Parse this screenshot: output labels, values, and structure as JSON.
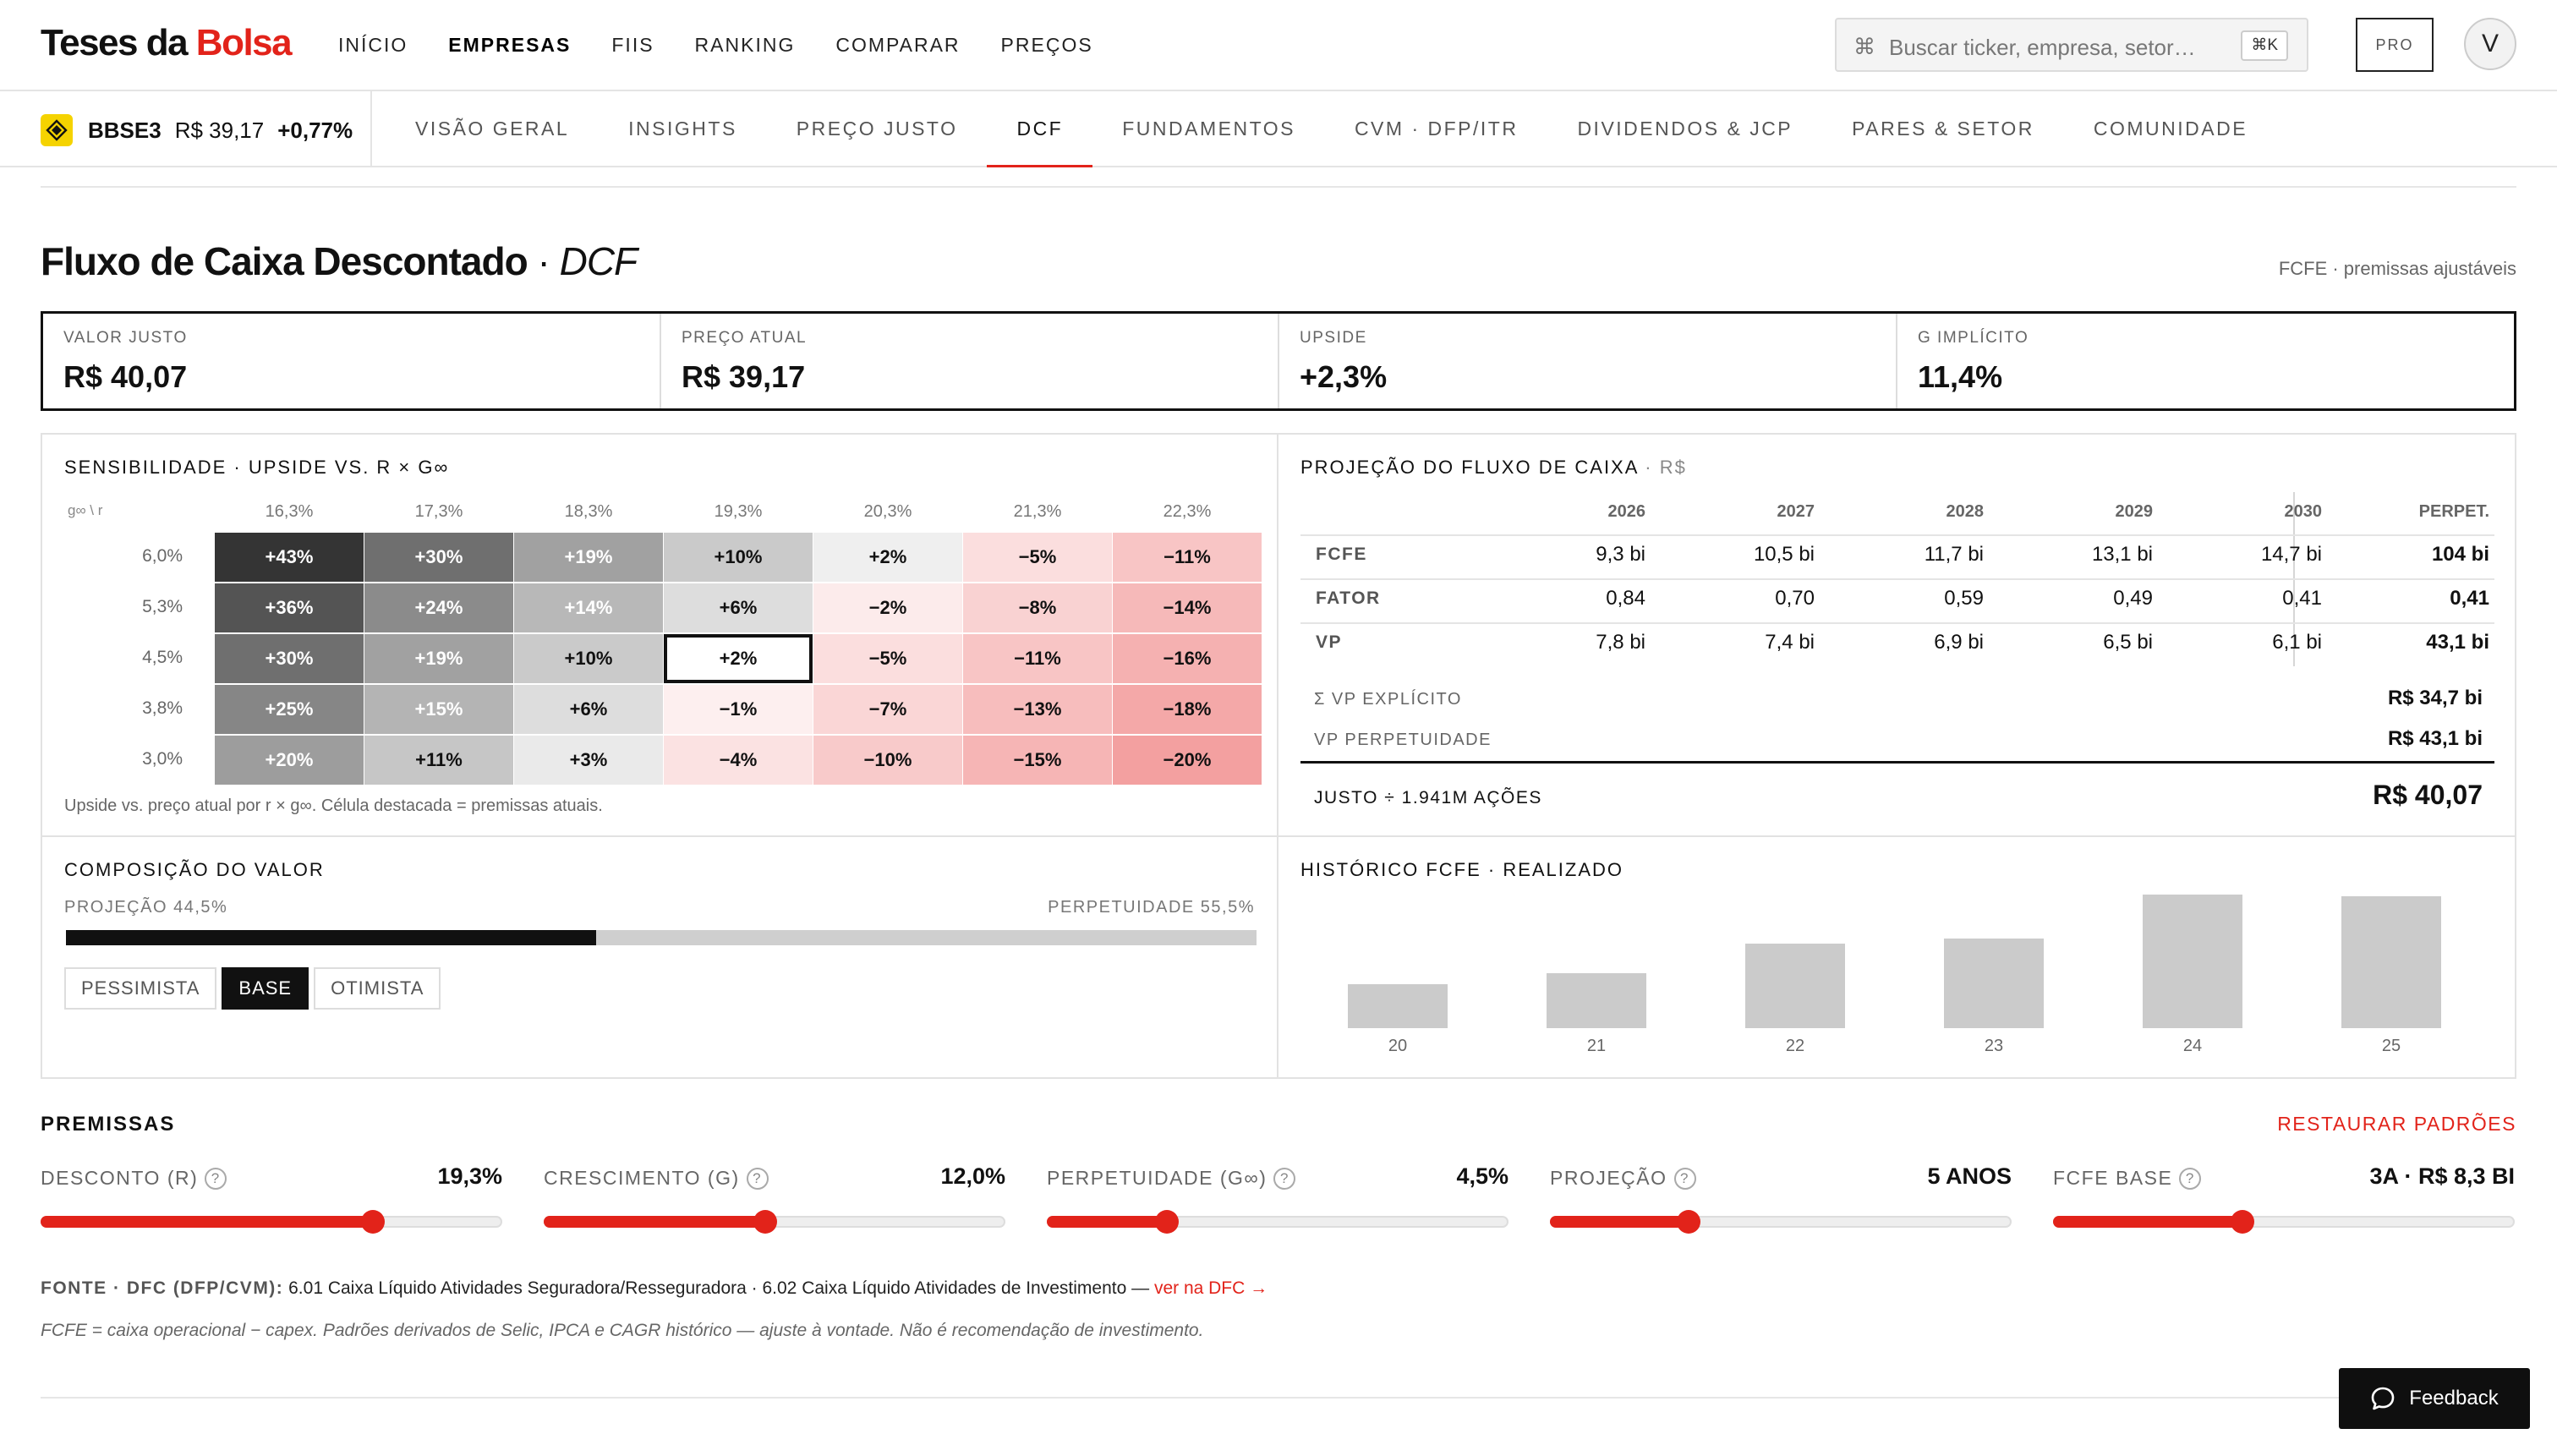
{
  "brand": {
    "part1": "Teses da ",
    "part2": "Bolsa",
    "accent": "#e2231a"
  },
  "nav": [
    "INÍCIO",
    "EMPRESAS",
    "FIIS",
    "RANKING",
    "COMPARAR",
    "PREÇOS"
  ],
  "nav_active": "EMPRESAS",
  "search": {
    "placeholder": "Buscar ticker, empresa, setor…",
    "shortcut": "⌘K",
    "icon": "command-icon"
  },
  "pro_label": "PRO",
  "avatar_initial": "V",
  "ticker": {
    "symbol": "BBSE3",
    "price": "R$ 39,17",
    "change": "+0,77%",
    "icon": "bbse-logo-icon",
    "icon_color": "#f5d300"
  },
  "tabs": [
    "VISÃO GERAL",
    "INSIGHTS",
    "PREÇO JUSTO",
    "DCF",
    "FUNDAMENTOS",
    "CVM · DFP/ITR",
    "DIVIDENDOS & JCP",
    "PARES & SETOR",
    "COMUNIDADE"
  ],
  "tab_active": "DCF",
  "page": {
    "title": "Fluxo de Caixa Descontado",
    "title_sep": " · ",
    "title_italic": "DCF",
    "subtitle": "FCFE · premissas ajustáveis"
  },
  "kpis": [
    {
      "label": "VALOR JUSTO",
      "value": "R$ 40,07"
    },
    {
      "label": "PREÇO ATUAL",
      "value": "R$ 39,17"
    },
    {
      "label": "UPSIDE",
      "value": "+2,3%"
    },
    {
      "label": "G IMPLÍCITO",
      "value": "11,4%"
    }
  ],
  "sensitivity": {
    "title": "SENSIBILIDADE · UPSIDE VS. R × G∞",
    "corner": "g∞ \\ r",
    "cols": [
      "16,3%",
      "17,3%",
      "18,3%",
      "19,3%",
      "20,3%",
      "21,3%",
      "22,3%"
    ],
    "rows": [
      "6,0%",
      "5,3%",
      "4,5%",
      "3,8%",
      "3,0%"
    ],
    "cells": [
      [
        "+43%",
        "+30%",
        "+19%",
        "+10%",
        "+2%",
        "−5%",
        "−11%"
      ],
      [
        "+36%",
        "+24%",
        "+14%",
        "+6%",
        "−2%",
        "−8%",
        "−14%"
      ],
      [
        "+30%",
        "+19%",
        "+10%",
        "+2%",
        "−5%",
        "−11%",
        "−16%"
      ],
      [
        "+25%",
        "+15%",
        "+6%",
        "−1%",
        "−7%",
        "−13%",
        "−18%"
      ],
      [
        "+20%",
        "+11%",
        "+3%",
        "−4%",
        "−10%",
        "−15%",
        "−20%"
      ]
    ],
    "highlight": {
      "row": 2,
      "col": 3
    },
    "note": "Upside vs. preço atual por r × g∞. Célula destacada = premissas atuais."
  },
  "projection": {
    "title": "PROJEÇÃO DO FLUXO DE CAIXA",
    "title_unit": " · R$",
    "years": [
      "2026",
      "2027",
      "2028",
      "2029",
      "2030"
    ],
    "perp_label": "PERPET.",
    "rows": [
      {
        "label": "FCFE",
        "values": [
          "9,3 bi",
          "10,5 bi",
          "11,7 bi",
          "13,1 bi",
          "14,7 bi"
        ],
        "perp": "104 bi"
      },
      {
        "label": "FATOR",
        "values": [
          "0,84",
          "0,70",
          "0,59",
          "0,49",
          "0,41"
        ],
        "perp": "0,41"
      },
      {
        "label": "VP",
        "values": [
          "7,8 bi",
          "7,4 bi",
          "6,9 bi",
          "6,5 bi",
          "6,1 bi"
        ],
        "perp": "43,1 bi"
      }
    ],
    "sum_explicit_label": "Σ VP EXPLÍCITO",
    "sum_explicit_value": "R$ 34,7 bi",
    "vp_perp_label": "VP PERPETUIDADE",
    "vp_perp_value": "R$ 43,1 bi",
    "fair_label": "JUSTO ÷ 1.941M AÇÕES",
    "fair_value": "R$ 40,07"
  },
  "composition": {
    "title": "COMPOSIÇÃO DO VALOR",
    "left_label": "PROJEÇÃO 44,5%",
    "right_label": "PERPETUIDADE 55,5%",
    "projection_share": 0.445,
    "scenarios": [
      "PESSIMISTA",
      "BASE",
      "OTIMISTA"
    ],
    "scenario_active": "BASE"
  },
  "history": {
    "title": "HISTÓRICO FCFE · REALIZADO",
    "labels": [
      "20",
      "21",
      "22",
      "23",
      "24",
      "25"
    ],
    "relative_values": [
      0.33,
      0.41,
      0.63,
      0.67,
      1.0,
      0.99
    ]
  },
  "premissas": {
    "title": "PREMISSAS",
    "reset": "RESTAURAR PADRÕES",
    "sliders": [
      {
        "label": "DESCONTO (R)",
        "value": "19,3%",
        "level": 0.72
      },
      {
        "label": "CRESCIMENTO (G)",
        "value": "12,0%",
        "level": 0.48
      },
      {
        "label": "PERPETUIDADE (G∞)",
        "value": "4,5%",
        "level": 0.26
      },
      {
        "label": "PROJEÇÃO",
        "value": "5 ANOS",
        "level": 0.3
      },
      {
        "label": "FCFE BASE",
        "value": "3A · R$ 8,3 BI",
        "level": 0.41
      }
    ]
  },
  "source": {
    "label": "FONTE · DFC (DFP/CVM):",
    "text": " 6.01 Caixa Líquido Atividades Seguradora/Resseguradora · 6.02 Caixa Líquido Atividades de Investimento — ",
    "link": "ver na DFC →"
  },
  "note": "FCFE = caixa operacional − capex. Padrões derivados de Selic, IPCA e CAGR histórico — ajuste à vontade. Não é recomendação de investimento.",
  "feedback_label": "Feedback"
}
